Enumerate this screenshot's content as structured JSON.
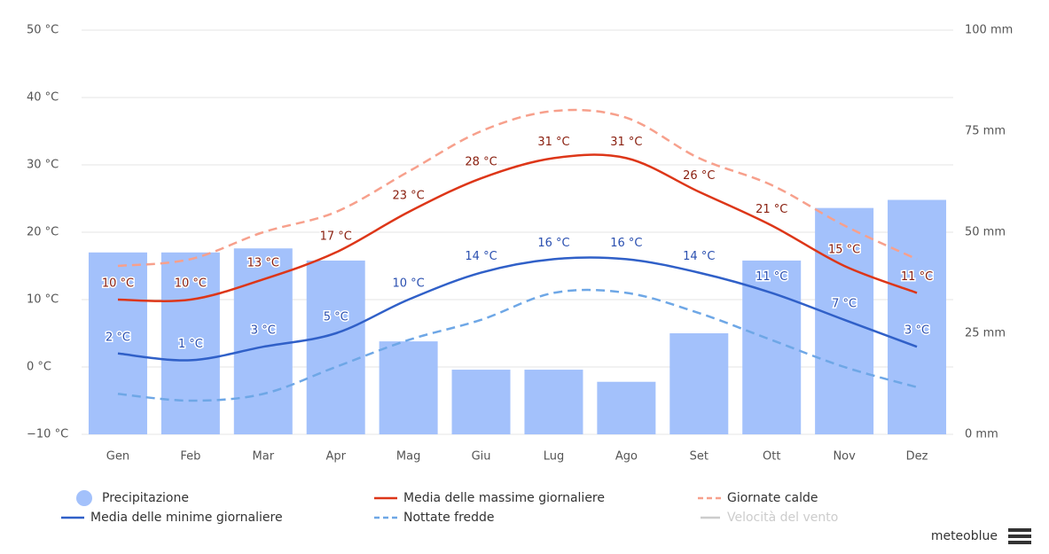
{
  "chart_data": {
    "type": "combo",
    "categories": [
      "Gen",
      "Feb",
      "Mar",
      "Apr",
      "Mag",
      "Giu",
      "Lug",
      "Ago",
      "Set",
      "Ott",
      "Nov",
      "Dez"
    ],
    "ylim": [
      -10,
      50
    ],
    "yticks": [
      {
        "value": -10,
        "label": "−10 °C"
      },
      {
        "value": 0,
        "label": "0 °C"
      },
      {
        "value": 10,
        "label": "10 °C"
      },
      {
        "value": 20,
        "label": "20 °C"
      },
      {
        "value": 30,
        "label": "30 °C"
      },
      {
        "value": 40,
        "label": "40 °C"
      },
      {
        "value": 50,
        "label": "50 °C"
      }
    ],
    "y2lim": [
      0,
      100
    ],
    "y2ticks": [
      {
        "value": 0,
        "label": "0 mm"
      },
      {
        "value": 25,
        "label": "25 mm"
      },
      {
        "value": 50,
        "label": "50 mm"
      },
      {
        "value": 75,
        "label": "75 mm"
      },
      {
        "value": 100,
        "label": "100 mm"
      }
    ],
    "grid": true,
    "series": [
      {
        "name": "Precipitazione",
        "type": "bar",
        "axis": "y2",
        "color": "#a3c1fb",
        "values": [
          45,
          45,
          46,
          43,
          23,
          16,
          16,
          13,
          25,
          43,
          56,
          58
        ]
      },
      {
        "name": "Media delle massime giornaliere",
        "type": "line",
        "color": "#dd3618",
        "label_color": "#8a2010",
        "values": [
          10,
          10,
          13,
          17,
          23,
          28,
          31,
          31,
          26,
          21,
          15,
          11
        ],
        "value_labels": [
          "10 °C",
          "10 °C",
          "13 °C",
          "17 °C",
          "23 °C",
          "28 °C",
          "31 °C",
          "31 °C",
          "26 °C",
          "21 °C",
          "15 °C",
          "11 °C"
        ]
      },
      {
        "name": "Giornate calde",
        "type": "line",
        "dashed": true,
        "color": "#f7a08c",
        "values": [
          15,
          16,
          20,
          23,
          29,
          35,
          38,
          37,
          31,
          27,
          21,
          16
        ]
      },
      {
        "name": "Media delle minime giornaliere",
        "type": "line",
        "color": "#3060c8",
        "label_color": "#2a4fb0",
        "values": [
          2,
          1,
          3,
          5,
          10,
          14,
          16,
          16,
          14,
          11,
          7,
          3
        ],
        "value_labels": [
          "2 °C",
          "1 °C",
          "3 °C",
          "5 °C",
          "10 °C",
          "14 °C",
          "16 °C",
          "16 °C",
          "14 °C",
          "11 °C",
          "7 °C",
          "3 °C"
        ]
      },
      {
        "name": "Nottate fredde",
        "type": "line",
        "dashed": true,
        "color": "#6ea7e6",
        "values": [
          -4,
          -5,
          -4,
          0,
          4,
          7,
          11,
          11,
          8,
          4,
          0,
          -3
        ]
      }
    ],
    "legend_hidden": [
      {
        "name": "Velocità del vento",
        "color": "#ccc"
      }
    ],
    "credit": "meteoblue"
  }
}
